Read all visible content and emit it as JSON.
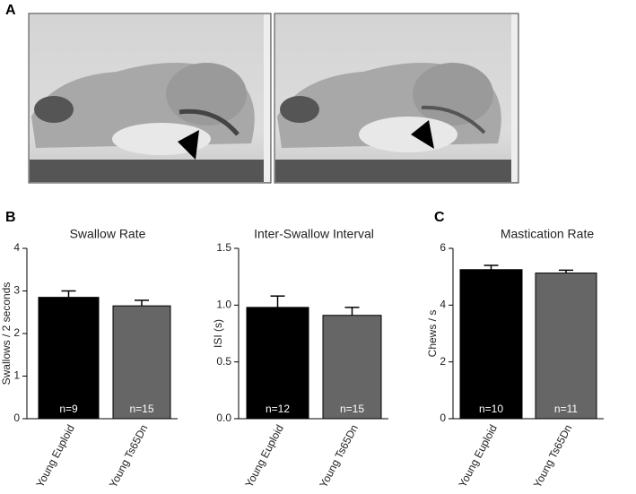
{
  "panels": {
    "a": "A",
    "b": "B",
    "c": "C"
  },
  "chart_data": [
    {
      "type": "bar",
      "title": "Swallow Rate",
      "y_label": "Swallows / 2 seconds",
      "categories": [
        "Young Euploid",
        "Young Ts65Dn"
      ],
      "values": [
        2.85,
        2.65
      ],
      "errors": [
        0.15,
        0.13
      ],
      "annotations": [
        "n=9",
        "n=15"
      ],
      "colors": [
        "#000000",
        "#666666"
      ],
      "ylim": [
        0,
        4
      ],
      "yticks": [
        0,
        1,
        2,
        3,
        4
      ]
    },
    {
      "type": "bar",
      "title": "Inter-Swallow Interval",
      "y_label": "ISI (s)",
      "categories": [
        "Young Euploid",
        "Young Ts65Dn"
      ],
      "values": [
        0.98,
        0.91
      ],
      "errors": [
        0.1,
        0.07
      ],
      "annotations": [
        "n=12",
        "n=15"
      ],
      "colors": [
        "#000000",
        "#666666"
      ],
      "ylim": [
        0,
        1.5
      ],
      "yticks": [
        {
          "value": 0,
          "label": "0.0"
        },
        0.5,
        {
          "value": 1,
          "label": "1.0"
        },
        1.5
      ]
    },
    {
      "type": "bar",
      "title": "Mastication Rate",
      "y_label": "Chews / s",
      "categories": [
        "Young Euploid",
        "Young Ts65Dn"
      ],
      "values": [
        5.25,
        5.13
      ],
      "errors": [
        0.15,
        0.1
      ],
      "annotations": [
        "n=10",
        "n=11"
      ],
      "colors": [
        "#000000",
        "#666666"
      ],
      "ylim": [
        0,
        6
      ],
      "yticks": [
        0,
        2,
        4,
        6
      ]
    }
  ]
}
